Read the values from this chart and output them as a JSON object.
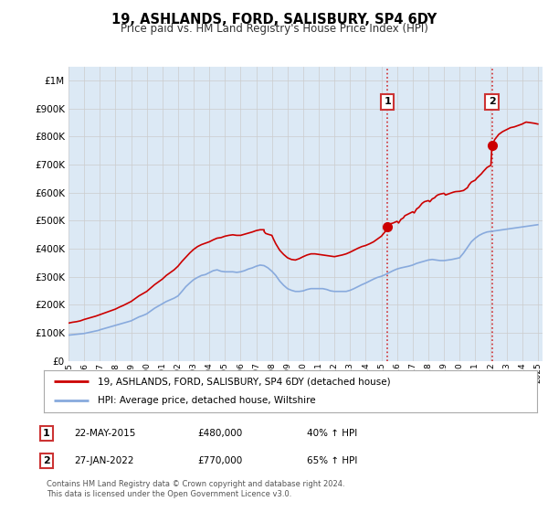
{
  "title": "19, ASHLANDS, FORD, SALISBURY, SP4 6DY",
  "subtitle": "Price paid vs. HM Land Registry's House Price Index (HPI)",
  "legend_line1": "19, ASHLANDS, FORD, SALISBURY, SP4 6DY (detached house)",
  "legend_line2": "HPI: Average price, detached house, Wiltshire",
  "sale1_label": "22-MAY-2015",
  "sale1_price": 480000,
  "sale1_pct": "40% ↑ HPI",
  "sale2_label": "27-JAN-2022",
  "sale2_price": 770000,
  "sale2_pct": "65% ↑ HPI",
  "sale1_year": 2015.38,
  "sale2_year": 2022.07,
  "footer": "Contains HM Land Registry data © Crown copyright and database right 2024.\nThis data is licensed under the Open Government Licence v3.0.",
  "red_color": "#cc0000",
  "blue_color": "#88aadd",
  "bg_color": "#dce9f5",
  "grid_color": "#cccccc",
  "ylim_max": 1050000,
  "hpi_x": [
    1995.0,
    1995.083,
    1995.167,
    1995.25,
    1995.333,
    1995.417,
    1995.5,
    1995.583,
    1995.667,
    1995.75,
    1995.833,
    1995.917,
    1996.0,
    1996.083,
    1996.167,
    1996.25,
    1996.333,
    1996.417,
    1996.5,
    1996.583,
    1996.667,
    1996.75,
    1996.833,
    1996.917,
    1997.0,
    1997.25,
    1997.5,
    1997.75,
    1998.0,
    1998.25,
    1998.5,
    1998.75,
    1999.0,
    1999.25,
    1999.5,
    1999.75,
    2000.0,
    2000.25,
    2000.5,
    2000.75,
    2001.0,
    2001.25,
    2001.5,
    2001.75,
    2002.0,
    2002.25,
    2002.5,
    2002.75,
    2003.0,
    2003.25,
    2003.5,
    2003.75,
    2004.0,
    2004.25,
    2004.5,
    2004.75,
    2005.0,
    2005.25,
    2005.5,
    2005.75,
    2006.0,
    2006.25,
    2006.5,
    2006.75,
    2007.0,
    2007.25,
    2007.5,
    2007.75,
    2008.0,
    2008.25,
    2008.5,
    2008.75,
    2009.0,
    2009.25,
    2009.5,
    2009.75,
    2010.0,
    2010.25,
    2010.5,
    2010.75,
    2011.0,
    2011.25,
    2011.5,
    2011.75,
    2012.0,
    2012.25,
    2012.5,
    2012.75,
    2013.0,
    2013.25,
    2013.5,
    2013.75,
    2014.0,
    2014.25,
    2014.5,
    2014.75,
    2015.0,
    2015.25,
    2015.5,
    2015.75,
    2016.0,
    2016.25,
    2016.5,
    2016.75,
    2017.0,
    2017.25,
    2017.5,
    2017.75,
    2018.0,
    2018.25,
    2018.5,
    2018.75,
    2019.0,
    2019.25,
    2019.5,
    2019.75,
    2020.0,
    2020.25,
    2020.5,
    2020.75,
    2021.0,
    2021.25,
    2021.5,
    2021.75,
    2022.0,
    2022.25,
    2022.5,
    2022.75,
    2023.0,
    2023.25,
    2023.5,
    2023.75,
    2024.0,
    2024.25,
    2024.5,
    2024.75,
    2025.0
  ],
  "hpi_y": [
    92000,
    92500,
    93000,
    93500,
    94000,
    94500,
    95000,
    95500,
    96000,
    96500,
    97000,
    97500,
    98000,
    99000,
    100000,
    101000,
    102000,
    103000,
    104000,
    105000,
    106000,
    107000,
    108000,
    109000,
    111000,
    115000,
    119000,
    123000,
    127000,
    131000,
    135000,
    139000,
    143000,
    150000,
    157000,
    162000,
    168000,
    178000,
    188000,
    196000,
    204000,
    212000,
    218000,
    224000,
    232000,
    248000,
    265000,
    278000,
    290000,
    298000,
    305000,
    308000,
    315000,
    322000,
    325000,
    320000,
    318000,
    318000,
    318000,
    316000,
    318000,
    322000,
    328000,
    332000,
    338000,
    342000,
    340000,
    332000,
    320000,
    305000,
    285000,
    270000,
    258000,
    252000,
    248000,
    248000,
    250000,
    255000,
    258000,
    258000,
    258000,
    258000,
    255000,
    250000,
    248000,
    248000,
    248000,
    248000,
    252000,
    258000,
    265000,
    272000,
    278000,
    285000,
    292000,
    298000,
    302000,
    308000,
    315000,
    322000,
    328000,
    332000,
    335000,
    338000,
    342000,
    348000,
    352000,
    356000,
    360000,
    362000,
    360000,
    358000,
    358000,
    360000,
    362000,
    365000,
    368000,
    385000,
    405000,
    425000,
    438000,
    448000,
    455000,
    460000,
    462000,
    464000,
    466000,
    468000,
    470000,
    472000,
    474000,
    476000,
    478000,
    480000,
    482000,
    484000,
    486000
  ],
  "red_x": [
    1995.0,
    1995.25,
    1995.5,
    1995.75,
    1996.0,
    1996.25,
    1996.5,
    1996.75,
    1997.0,
    1997.25,
    1997.5,
    1997.75,
    1998.0,
    1998.25,
    1998.5,
    1998.75,
    1999.0,
    1999.25,
    1999.5,
    1999.75,
    2000.0,
    2000.25,
    2000.5,
    2000.75,
    2001.0,
    2001.25,
    2001.5,
    2001.75,
    2002.0,
    2002.25,
    2002.5,
    2002.75,
    2003.0,
    2003.25,
    2003.5,
    2003.75,
    2004.0,
    2004.25,
    2004.5,
    2004.75,
    2005.0,
    2005.25,
    2005.5,
    2005.75,
    2006.0,
    2006.25,
    2006.5,
    2006.75,
    2007.0,
    2007.25,
    2007.5,
    2007.5,
    2007.6,
    2007.75,
    2008.0,
    2008.1,
    2008.25,
    2008.5,
    2008.75,
    2009.0,
    2009.25,
    2009.5,
    2009.75,
    2010.0,
    2010.25,
    2010.5,
    2010.75,
    2011.0,
    2011.25,
    2011.5,
    2011.75,
    2012.0,
    2012.25,
    2012.5,
    2012.75,
    2013.0,
    2013.25,
    2013.5,
    2013.75,
    2014.0,
    2014.25,
    2014.5,
    2014.75,
    2015.0,
    2015.25,
    2015.38,
    2015.5,
    2015.75,
    2016.0,
    2016.1,
    2016.25,
    2016.4,
    2016.5,
    2016.75,
    2017.0,
    2017.1,
    2017.25,
    2017.4,
    2017.5,
    2017.6,
    2017.75,
    2018.0,
    2018.1,
    2018.25,
    2018.4,
    2018.5,
    2018.6,
    2018.75,
    2019.0,
    2019.1,
    2019.25,
    2019.4,
    2019.5,
    2019.6,
    2019.75,
    2020.0,
    2020.25,
    2020.5,
    2020.6,
    2020.75,
    2021.0,
    2021.1,
    2021.25,
    2021.4,
    2021.5,
    2021.75,
    2022.0,
    2022.07,
    2022.25,
    2022.5,
    2022.75,
    2023.0,
    2023.1,
    2023.25,
    2023.5,
    2023.75,
    2024.0,
    2024.1,
    2024.25,
    2024.5,
    2024.75,
    2025.0
  ],
  "red_y": [
    135000,
    138000,
    140000,
    143000,
    148000,
    152000,
    156000,
    160000,
    165000,
    170000,
    175000,
    180000,
    185000,
    192000,
    198000,
    205000,
    212000,
    222000,
    232000,
    240000,
    248000,
    260000,
    272000,
    282000,
    292000,
    305000,
    315000,
    325000,
    338000,
    355000,
    370000,
    385000,
    398000,
    408000,
    415000,
    420000,
    425000,
    432000,
    438000,
    440000,
    445000,
    448000,
    450000,
    448000,
    448000,
    452000,
    456000,
    460000,
    465000,
    468000,
    468000,
    462000,
    455000,
    452000,
    448000,
    435000,
    418000,
    395000,
    380000,
    368000,
    362000,
    360000,
    365000,
    372000,
    378000,
    382000,
    382000,
    380000,
    378000,
    376000,
    374000,
    372000,
    375000,
    378000,
    382000,
    388000,
    395000,
    402000,
    408000,
    412000,
    418000,
    425000,
    435000,
    445000,
    462000,
    480000,
    488000,
    492000,
    498000,
    492000,
    505000,
    510000,
    518000,
    525000,
    532000,
    528000,
    542000,
    548000,
    555000,
    562000,
    568000,
    572000,
    568000,
    578000,
    582000,
    588000,
    592000,
    595000,
    598000,
    592000,
    595000,
    598000,
    600000,
    602000,
    604000,
    605000,
    608000,
    618000,
    628000,
    638000,
    645000,
    652000,
    660000,
    668000,
    675000,
    690000,
    698000,
    770000,
    790000,
    808000,
    818000,
    825000,
    828000,
    832000,
    835000,
    840000,
    845000,
    848000,
    852000,
    850000,
    848000,
    845000
  ]
}
